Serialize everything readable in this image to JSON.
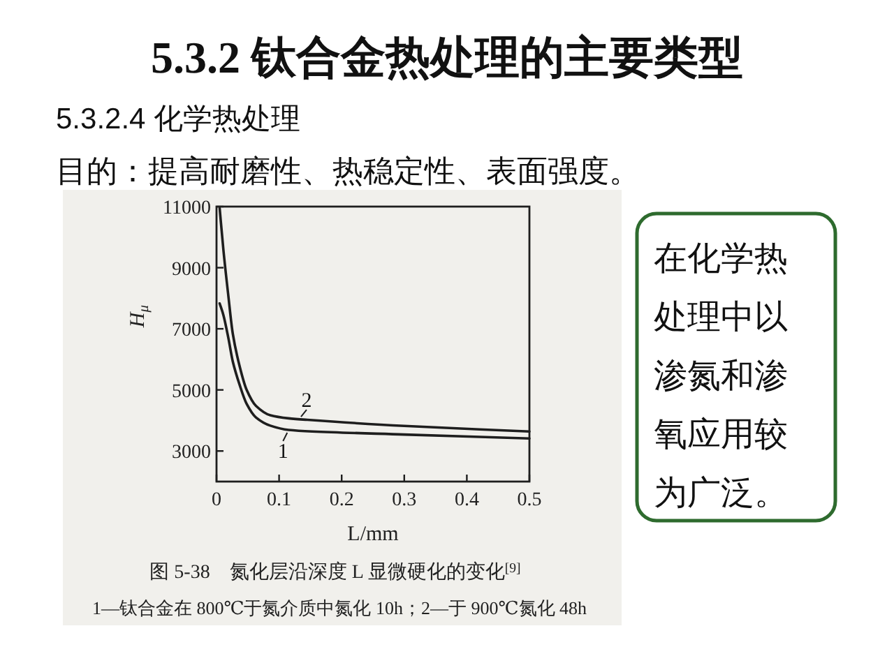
{
  "chart_data": {
    "type": "line",
    "title": "5.3.2 钛合金热处理的主要类型",
    "subtitle": "5.3.2.4 化学热处理",
    "xlabel": "L/mm",
    "ylabel": "H$_{μ}$",
    "xlim": [
      0,
      0.5
    ],
    "ylim": [
      2000,
      11000
    ],
    "xticks": [
      0,
      0.1,
      0.2,
      0.3,
      0.4,
      0.5
    ],
    "yticks": [
      3000,
      5000,
      7000,
      9000,
      11000
    ],
    "series": [
      {
        "color": "#1e1e1e",
        "x": [
          0.005,
          0.011,
          0.019,
          0.026,
          0.037,
          0.048,
          0.063,
          0.086,
          0.115,
          0.153,
          0.3,
          0.5
        ],
        "values": [
          7830,
          7450,
          6690,
          5930,
          5160,
          4550,
          4100,
          3830,
          3690,
          3640,
          3540,
          3410
        ]
      },
      {
        "color": "#1e1e1e",
        "x": [
          0.005,
          0.011,
          0.019,
          0.026,
          0.037,
          0.048,
          0.063,
          0.086,
          0.115,
          0.145,
          0.3,
          0.5
        ],
        "values": [
          10950,
          9580,
          8060,
          6840,
          5770,
          5010,
          4480,
          4170,
          4070,
          4020,
          3820,
          3640
        ]
      }
    ],
    "annotations": [
      "目的：提高耐磨性、热稳定性、表面强度。",
      "图 5-38　氮化层沿深度 L 显微硬化的变化$^{[9]}$",
      "1—钛合金在 800℃于氮介质中氮化 10h；2—于 900℃氮化 48h",
      "在化学热处理中以渗氮和渗氧应用较为广泛。",
      {
        "text": "2",
        "x": 0.135,
        "y": 4030
      },
      {
        "text": "1",
        "x": 0.113,
        "y": 3690
      }
    ]
  }
}
